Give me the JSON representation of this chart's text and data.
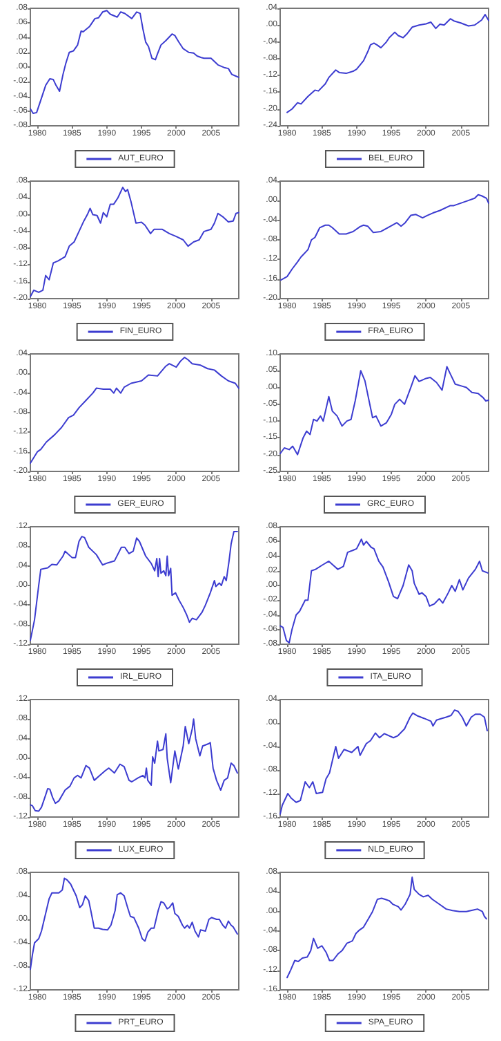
{
  "chart_data": [
    {
      "type": "line",
      "legend": "bottom",
      "xlim": [
        1979,
        2009
      ],
      "xticks": [
        1980,
        1985,
        1990,
        1995,
        2000,
        2005
      ],
      "ylim": [
        -0.08,
        0.08
      ],
      "yticks": [
        {
          "value": 0.08,
          "label": ".08"
        },
        {
          "value": 0.06,
          "label": ".06"
        },
        {
          "value": 0.04,
          "label": ".04"
        },
        {
          "value": 0.02,
          "label": ".02"
        },
        {
          "value": 0,
          "label": ".00"
        },
        {
          "value": -0.02,
          "label": "-.02"
        },
        {
          "value": -0.04,
          "label": "-.04"
        },
        {
          "value": -0.06,
          "label": "-.06"
        },
        {
          "value": -0.08,
          "label": "-.08"
        }
      ],
      "series": [
        {
          "name": "AUT_EURO",
          "color": "#3c3cd0",
          "x": [
            1979,
            1979.4,
            1979.9,
            1980.5,
            1981.2,
            1981.8,
            1982.3,
            1982.7,
            1983.2,
            1983.7,
            1984.1,
            1984.6,
            1985.2,
            1985.8,
            1986.3,
            1986.6,
            1987.5,
            1988.3,
            1988.8,
            1989.4,
            1990,
            1990.5,
            1991.5,
            1992,
            1992.6,
            1993.6,
            1994.3,
            1994.8,
            1995.2,
            1995.6,
            1996,
            1996.5,
            1997,
            1997.3,
            1997.8,
            1998.5,
            1999.4,
            1999.8,
            2000.3,
            2001,
            2001.8,
            2002.5,
            2003,
            2003.6,
            2004,
            2005,
            2006,
            2007,
            2007.5,
            2008,
            2008.5,
            2009
          ],
          "values": [
            -0.057,
            -0.063,
            -0.062,
            -0.045,
            -0.025,
            -0.016,
            -0.017,
            -0.025,
            -0.033,
            -0.01,
            0.005,
            0.02,
            0.022,
            0.03,
            0.049,
            0.048,
            0.055,
            0.066,
            0.067,
            0.075,
            0.077,
            0.072,
            0.068,
            0.075,
            0.073,
            0.066,
            0.075,
            0.073,
            0.052,
            0.034,
            0.028,
            0.012,
            0.01,
            0.018,
            0.03,
            0.036,
            0.045,
            0.043,
            0.035,
            0.025,
            0.02,
            0.019,
            0.015,
            0.013,
            0.012,
            0.012,
            0.003,
            -0.001,
            -0.002,
            -0.01,
            -0.012,
            -0.014
          ]
        }
      ]
    },
    {
      "type": "line",
      "legend": "bottom",
      "xlim": [
        1979,
        2009
      ],
      "xticks": [
        1980,
        1985,
        1990,
        1995,
        2000,
        2005
      ],
      "ylim": [
        -0.24,
        0.04
      ],
      "yticks": [
        {
          "value": 0.04,
          "label": ".04"
        },
        {
          "value": 0,
          "label": ".00"
        },
        {
          "value": -0.04,
          "label": "-.04"
        },
        {
          "value": -0.08,
          "label": "-.08"
        },
        {
          "value": -0.12,
          "label": "-.12"
        },
        {
          "value": -0.16,
          "label": "-.16"
        },
        {
          "value": -0.2,
          "label": "-.20"
        },
        {
          "value": -0.24,
          "label": "-.24"
        }
      ],
      "series": [
        {
          "name": "BEL_EURO",
          "color": "#3c3cd0",
          "x": [
            1980,
            1980.7,
            1981.5,
            1982,
            1983,
            1984,
            1984.5,
            1985.5,
            1986,
            1987,
            1987.5,
            1988.5,
            1989.5,
            1990,
            1991,
            1991.7,
            1992,
            1992.5,
            1993,
            1993.5,
            1994.3,
            1994.7,
            1995.5,
            1996,
            1996.7,
            1997.3,
            1998,
            1999,
            2000,
            2000.7,
            2001.4,
            2002,
            2002.6,
            2003.5,
            2004,
            2005,
            2006.1,
            2007,
            2008,
            2008.5,
            2009
          ],
          "values": [
            -0.208,
            -0.2,
            -0.185,
            -0.188,
            -0.17,
            -0.155,
            -0.157,
            -0.14,
            -0.125,
            -0.107,
            -0.113,
            -0.115,
            -0.11,
            -0.105,
            -0.085,
            -0.06,
            -0.047,
            -0.043,
            -0.048,
            -0.054,
            -0.04,
            -0.03,
            -0.017,
            -0.025,
            -0.03,
            -0.02,
            -0.005,
            0,
            0.003,
            0.007,
            -0.008,
            0.002,
            0,
            0.015,
            0.01,
            0.005,
            -0.002,
            0,
            0.012,
            0.025,
            0.011
          ]
        }
      ]
    },
    {
      "type": "line",
      "legend": "bottom",
      "xlim": [
        1979,
        2009
      ],
      "xticks": [
        1980,
        1985,
        1990,
        1995,
        2000,
        2005
      ],
      "ylim": [
        -0.2,
        0.08
      ],
      "yticks": [
        {
          "value": 0.08,
          "label": ".08"
        },
        {
          "value": 0.04,
          "label": ".04"
        },
        {
          "value": 0,
          "label": ".00"
        },
        {
          "value": -0.04,
          "label": "-.04"
        },
        {
          "value": -0.08,
          "label": "-.08"
        },
        {
          "value": -0.12,
          "label": "-.12"
        },
        {
          "value": -0.16,
          "label": "-.16"
        },
        {
          "value": -0.2,
          "label": "-.20"
        }
      ],
      "series": [
        {
          "name": "FIN_EURO",
          "color": "#3c3cd0",
          "x": [
            1979,
            1979.5,
            1980.2,
            1980.8,
            1981.2,
            1981.7,
            1982.3,
            1983,
            1984,
            1984.6,
            1985.3,
            1986,
            1986.7,
            1987.2,
            1987.6,
            1988,
            1988.6,
            1989.1,
            1989.5,
            1990,
            1990.5,
            1991,
            1991.6,
            1992.3,
            1992.7,
            1993,
            1993.5,
            1994.2,
            1995,
            1995.5,
            1996.3,
            1996.8,
            1998,
            1999,
            2000,
            2001,
            2001.7,
            2002.5,
            2003.3,
            2004,
            2005,
            2005.5,
            2006,
            2006.7,
            2007.5,
            2008.2,
            2008.6,
            2009
          ],
          "values": [
            -0.195,
            -0.18,
            -0.185,
            -0.18,
            -0.145,
            -0.155,
            -0.115,
            -0.11,
            -0.1,
            -0.075,
            -0.065,
            -0.04,
            -0.015,
            0,
            0.015,
            0,
            -0.002,
            -0.02,
            0.005,
            -0.005,
            0.025,
            0.025,
            0.04,
            0.065,
            0.055,
            0.06,
            0.03,
            -0.02,
            -0.018,
            -0.025,
            -0.045,
            -0.035,
            -0.035,
            -0.045,
            -0.052,
            -0.06,
            -0.075,
            -0.065,
            -0.06,
            -0.04,
            -0.035,
            -0.02,
            0.003,
            -0.005,
            -0.017,
            -0.015,
            0.003,
            0.005
          ]
        }
      ]
    },
    {
      "type": "line",
      "legend": "bottom",
      "xlim": [
        1979,
        2009
      ],
      "xticks": [
        1980,
        1985,
        1990,
        1995,
        2000,
        2005
      ],
      "ylim": [
        -0.2,
        0.04
      ],
      "yticks": [
        {
          "value": 0.04,
          "label": ".04"
        },
        {
          "value": 0,
          "label": ".00"
        },
        {
          "value": -0.04,
          "label": "-.04"
        },
        {
          "value": -0.08,
          "label": "-.08"
        },
        {
          "value": -0.12,
          "label": "-.12"
        },
        {
          "value": -0.16,
          "label": "-.16"
        },
        {
          "value": -0.2,
          "label": "-.20"
        }
      ],
      "series": [
        {
          "name": "FRA_EURO",
          "color": "#3c3cd0",
          "x": [
            1979.1,
            1980,
            1980.7,
            1981.5,
            1982,
            1983,
            1983.5,
            1984,
            1984.7,
            1985.5,
            1986,
            1986.5,
            1987.5,
            1988.5,
            1989.5,
            1990.5,
            1991,
            1991.6,
            1992.4,
            1993.5,
            1994.5,
            1995.8,
            1996.4,
            1997,
            1997.8,
            1998.5,
            1999.5,
            2000.2,
            2001,
            2002,
            2003.5,
            2004,
            2005,
            2006,
            2007,
            2007.5,
            2008,
            2008.7,
            2009
          ],
          "values": [
            -0.162,
            -0.155,
            -0.14,
            -0.125,
            -0.115,
            -0.1,
            -0.08,
            -0.075,
            -0.055,
            -0.05,
            -0.05,
            -0.055,
            -0.068,
            -0.068,
            -0.063,
            -0.053,
            -0.05,
            -0.052,
            -0.065,
            -0.063,
            -0.055,
            -0.045,
            -0.052,
            -0.045,
            -0.03,
            -0.028,
            -0.035,
            -0.03,
            -0.025,
            -0.02,
            -0.01,
            -0.01,
            -0.005,
            0,
            0.005,
            0.012,
            0.01,
            0.005,
            -0.005
          ]
        }
      ]
    },
    {
      "type": "line",
      "legend": "bottom",
      "xlim": [
        1979,
        2009
      ],
      "xticks": [
        1980,
        1985,
        1990,
        1995,
        2000,
        2005
      ],
      "ylim": [
        -0.2,
        0.04
      ],
      "yticks": [
        {
          "value": 0.04,
          "label": ".04"
        },
        {
          "value": 0,
          "label": ".00"
        },
        {
          "value": -0.04,
          "label": "-.04"
        },
        {
          "value": -0.08,
          "label": "-.08"
        },
        {
          "value": -0.12,
          "label": "-.12"
        },
        {
          "value": -0.16,
          "label": "-.16"
        },
        {
          "value": -0.2,
          "label": "-.20"
        }
      ],
      "series": [
        {
          "name": "GER_EURO",
          "color": "#3c3cd0",
          "x": [
            1979,
            1980,
            1980.5,
            1981.3,
            1982.5,
            1983.5,
            1984.5,
            1985.2,
            1986,
            1987,
            1988,
            1988.5,
            1989.5,
            1990.5,
            1991,
            1991.4,
            1992,
            1992.5,
            1993.5,
            1995,
            1996,
            1997.3,
            1998.5,
            1999,
            2000,
            2000.6,
            2001.2,
            2001.7,
            2002.3,
            2003.5,
            2004.5,
            2005.5,
            2006.5,
            2007.5,
            2008.5,
            2009
          ],
          "values": [
            -0.183,
            -0.16,
            -0.155,
            -0.14,
            -0.125,
            -0.11,
            -0.09,
            -0.085,
            -0.07,
            -0.055,
            -0.04,
            -0.03,
            -0.032,
            -0.032,
            -0.04,
            -0.03,
            -0.04,
            -0.028,
            -0.02,
            -0.015,
            -0.003,
            -0.005,
            0.015,
            0.02,
            0.013,
            0.025,
            0.033,
            0.028,
            0.02,
            0.017,
            0.01,
            0.007,
            -0.005,
            -0.015,
            -0.02,
            -0.03
          ]
        }
      ]
    },
    {
      "type": "line",
      "legend": "bottom",
      "xlim": [
        1979,
        2009
      ],
      "xticks": [
        1980,
        1985,
        1990,
        1995,
        2000,
        2005
      ],
      "ylim": [
        -0.25,
        0.1
      ],
      "yticks": [
        {
          "value": 0.1,
          "label": ".10"
        },
        {
          "value": 0.05,
          "label": ".05"
        },
        {
          "value": 0,
          "label": ".00"
        },
        {
          "value": -0.05,
          "label": "-.05"
        },
        {
          "value": -0.1,
          "label": "-.10"
        },
        {
          "value": -0.15,
          "label": "-.15"
        },
        {
          "value": -0.2,
          "label": "-.20"
        },
        {
          "value": -0.25,
          "label": "-.25"
        }
      ],
      "series": [
        {
          "name": "GRC_EURO",
          "color": "#3c3cd0",
          "x": [
            1979,
            1979.6,
            1980.3,
            1980.8,
            1981.5,
            1982.3,
            1982.8,
            1983.3,
            1983.8,
            1984.3,
            1984.8,
            1985.2,
            1986,
            1986.5,
            1987.2,
            1987.9,
            1988.6,
            1989.2,
            1989.8,
            1990.6,
            1991.2,
            1991.8,
            1992.3,
            1992.8,
            1993.5,
            1994.3,
            1995,
            1995.5,
            1996.2,
            1996.9,
            1997.8,
            1998.4,
            1999,
            2000,
            2000.6,
            2001.5,
            2002.3,
            2003,
            2003.5,
            2004.2,
            2005,
            2005.8,
            2006.6,
            2007.5,
            2008.2,
            2008.6,
            2009
          ],
          "values": [
            -0.197,
            -0.18,
            -0.185,
            -0.175,
            -0.2,
            -0.15,
            -0.13,
            -0.14,
            -0.095,
            -0.1,
            -0.085,
            -0.1,
            -0.027,
            -0.07,
            -0.085,
            -0.115,
            -0.1,
            -0.095,
            -0.04,
            0.05,
            0.02,
            -0.04,
            -0.09,
            -0.085,
            -0.115,
            -0.105,
            -0.08,
            -0.05,
            -0.035,
            -0.05,
            0,
            0.035,
            0.018,
            0.027,
            0.03,
            0.015,
            -0.008,
            0.062,
            0.04,
            0.01,
            0.005,
            0,
            -0.015,
            -0.018,
            -0.03,
            -0.04,
            -0.038
          ]
        }
      ]
    },
    {
      "type": "line",
      "legend": "bottom",
      "xlim": [
        1979,
        2009
      ],
      "xticks": [
        1980,
        1985,
        1990,
        1995,
        2000,
        2005
      ],
      "ylim": [
        -0.12,
        0.12
      ],
      "yticks": [
        {
          "value": 0.12,
          "label": ".12"
        },
        {
          "value": 0.08,
          "label": ".08"
        },
        {
          "value": 0.04,
          "label": ".04"
        },
        {
          "value": 0,
          "label": ".00"
        },
        {
          "value": -0.04,
          "label": "-.04"
        },
        {
          "value": -0.08,
          "label": "-.08"
        },
        {
          "value": -0.12,
          "label": "-.12"
        }
      ],
      "series": [
        {
          "name": "IRL_EURO",
          "color": "#3c3cd0",
          "x": [
            1979,
            1979.6,
            1980.2,
            1980.5,
            1981.5,
            1982.1,
            1982.8,
            1983.7,
            1984,
            1985,
            1985.5,
            1986,
            1986.4,
            1986.8,
            1987.4,
            1988.5,
            1989.4,
            1990.1,
            1991.1,
            1992.1,
            1992.6,
            1993.2,
            1993.8,
            1994.3,
            1994.7,
            1995.6,
            1996.4,
            1996.9,
            1997.2,
            1997.4,
            1997.6,
            1997.8,
            1998.2,
            1998.5,
            1998.7,
            1998.9,
            1999.2,
            1999.4,
            1999.9,
            2000.4,
            2001,
            2001.5,
            2001.9,
            2002.3,
            2002.9,
            2003.7,
            2004.2,
            2004.9,
            2005.5,
            2005.7,
            2006.2,
            2006.5,
            2006.9,
            2007.2,
            2007.6,
            2007.9,
            2008.3,
            2008.8
          ],
          "values": [
            -0.112,
            -0.07,
            0,
            0.033,
            0.036,
            0.043,
            0.042,
            0.06,
            0.07,
            0.057,
            0.057,
            0.09,
            0.1,
            0.098,
            0.078,
            0.063,
            0.042,
            0.046,
            0.05,
            0.078,
            0.078,
            0.065,
            0.07,
            0.097,
            0.09,
            0.06,
            0.045,
            0.03,
            0.055,
            0.018,
            0.055,
            0.025,
            0.03,
            0.02,
            0.06,
            0.02,
            0.035,
            -0.02,
            -0.015,
            -0.03,
            -0.045,
            -0.06,
            -0.075,
            -0.067,
            -0.07,
            -0.055,
            -0.04,
            -0.015,
            0.01,
            -0.002,
            0.005,
            0,
            0.018,
            0.01,
            0.05,
            0.085,
            0.11,
            0.11
          ]
        }
      ]
    },
    {
      "type": "line",
      "legend": "bottom",
      "xlim": [
        1979,
        2009
      ],
      "xticks": [
        1980,
        1985,
        1990,
        1995,
        2000,
        2005
      ],
      "ylim": [
        -0.08,
        0.08
      ],
      "yticks": [
        {
          "value": 0.08,
          "label": ".08"
        },
        {
          "value": 0.06,
          "label": ".06"
        },
        {
          "value": 0.04,
          "label": ".04"
        },
        {
          "value": 0.02,
          "label": ".02"
        },
        {
          "value": 0,
          "label": ".00"
        },
        {
          "value": -0.02,
          "label": "-.02"
        },
        {
          "value": -0.04,
          "label": "-.04"
        },
        {
          "value": -0.06,
          "label": "-.06"
        },
        {
          "value": -0.08,
          "label": "-.08"
        }
      ],
      "series": [
        {
          "name": "ITA_EURO",
          "color": "#3c3cd0",
          "x": [
            1979,
            1979.4,
            1979.9,
            1980.3,
            1980.7,
            1981.3,
            1981.8,
            1982.6,
            1983,
            1983.5,
            1984.1,
            1985.1,
            1986,
            1986.7,
            1987.3,
            1988.1,
            1988.7,
            1989.5,
            1990,
            1990.7,
            1991,
            1991.4,
            1992.1,
            1992.5,
            1993.2,
            1993.8,
            1994.6,
            1995.3,
            1995.9,
            1996.7,
            1997.5,
            1998,
            1998.3,
            1999,
            1999.4,
            2000,
            2000.5,
            2001.2,
            2001.9,
            2002.4,
            2003.2,
            2003.7,
            2004.2,
            2004.8,
            2005.3,
            2006.1,
            2007.1,
            2007.7,
            2008.1,
            2008.9
          ],
          "values": [
            -0.055,
            -0.057,
            -0.075,
            -0.078,
            -0.06,
            -0.04,
            -0.035,
            -0.02,
            -0.02,
            0.02,
            0.022,
            0.028,
            0.033,
            0.027,
            0.022,
            0.026,
            0.045,
            0.048,
            0.05,
            0.063,
            0.055,
            0.06,
            0.052,
            0.05,
            0.033,
            0.025,
            0.005,
            -0.015,
            -0.018,
            0,
            0.028,
            0.02,
            0.003,
            -0.012,
            -0.01,
            -0.015,
            -0.028,
            -0.025,
            -0.018,
            -0.024,
            -0.01,
            0,
            -0.008,
            0.008,
            -0.006,
            0.01,
            0.022,
            0.033,
            0.02,
            0.017
          ]
        }
      ]
    },
    {
      "type": "line",
      "legend": "bottom",
      "xlim": [
        1979,
        2009
      ],
      "xticks": [
        1980,
        1985,
        1990,
        1995,
        2000,
        2005
      ],
      "ylim": [
        -0.12,
        0.12
      ],
      "yticks": [
        {
          "value": 0.12,
          "label": ".12"
        },
        {
          "value": 0.08,
          "label": ".08"
        },
        {
          "value": 0.04,
          "label": ".04"
        },
        {
          "value": 0,
          "label": ".00"
        },
        {
          "value": -0.04,
          "label": "-.04"
        },
        {
          "value": -0.08,
          "label": "-.08"
        },
        {
          "value": -0.12,
          "label": "-.12"
        }
      ],
      "series": [
        {
          "name": "LUX_EURO",
          "color": "#3c3cd0",
          "x": [
            1979,
            1979.3,
            1979.7,
            1980.2,
            1980.6,
            1981.2,
            1981.5,
            1981.8,
            1982.2,
            1982.6,
            1983.1,
            1984,
            1984.7,
            1985.3,
            1985.8,
            1986.3,
            1987,
            1987.5,
            1988.2,
            1989,
            1989.8,
            1990.3,
            1991.1,
            1991.9,
            1992.5,
            1993.2,
            1993.6,
            1994.5,
            1995.2,
            1995.5,
            1995.7,
            1995.9,
            1996.4,
            1996.6,
            1996.9,
            1997.3,
            1997.5,
            1998.1,
            1998.5,
            1998.7,
            1999.2,
            1999.8,
            2000.3,
            2001,
            2001.3,
            2001.8,
            2002.3,
            2002.5,
            2002.8,
            2003.4,
            2003.8,
            2004.7,
            2004.9,
            2005.3,
            2005.8,
            2006.4,
            2006.9,
            2007.4,
            2007.9,
            2008.3,
            2008.8
          ],
          "values": [
            -0.095,
            -0.097,
            -0.107,
            -0.108,
            -0.1,
            -0.075,
            -0.062,
            -0.063,
            -0.08,
            -0.092,
            -0.087,
            -0.065,
            -0.057,
            -0.04,
            -0.035,
            -0.04,
            -0.015,
            -0.02,
            -0.045,
            -0.035,
            -0.025,
            -0.02,
            -0.03,
            -0.012,
            -0.017,
            -0.045,
            -0.048,
            -0.04,
            -0.035,
            -0.04,
            -0.02,
            -0.045,
            -0.055,
            0.003,
            -0.01,
            0.035,
            0.015,
            0.018,
            0.05,
            0,
            -0.05,
            0.015,
            -0.022,
            0.025,
            0.065,
            0.03,
            0.06,
            0.08,
            0.04,
            0.005,
            0.025,
            0.03,
            0.032,
            -0.02,
            -0.045,
            -0.065,
            -0.045,
            -0.04,
            -0.01,
            -0.015,
            -0.03
          ]
        }
      ]
    },
    {
      "type": "line",
      "legend": "bottom",
      "xlim": [
        1979,
        2009
      ],
      "xticks": [
        1980,
        1985,
        1990,
        1995,
        2000,
        2005
      ],
      "ylim": [
        -0.16,
        0.04
      ],
      "yticks": [
        {
          "value": 0.04,
          "label": ".04"
        },
        {
          "value": 0,
          "label": ".00"
        },
        {
          "value": -0.04,
          "label": "-.04"
        },
        {
          "value": -0.08,
          "label": "-.08"
        },
        {
          "value": -0.12,
          "label": "-.12"
        },
        {
          "value": -0.16,
          "label": "-.16"
        }
      ],
      "series": [
        {
          "name": "NLD_EURO",
          "color": "#3c3cd0",
          "x": [
            1979,
            1979.3,
            1979.9,
            1980.1,
            1980.6,
            1981.3,
            1981.9,
            1982.6,
            1983.2,
            1983.7,
            1984.2,
            1985.1,
            1985.6,
            1986.1,
            1987,
            1987.4,
            1988.2,
            1989.3,
            1990.2,
            1990.5,
            1991.4,
            1992,
            1992.7,
            1993.3,
            1994,
            1995.3,
            1995.9,
            1996.9,
            1997.7,
            1998.1,
            1998.8,
            1999.7,
            2000.7,
            2001,
            2001.5,
            2002.3,
            2002.9,
            2003.6,
            2004.1,
            2004.6,
            2005.2,
            2005.8,
            2006.5,
            2007.1,
            2007.8,
            2008.4,
            2008.8
          ],
          "values": [
            -0.155,
            -0.14,
            -0.125,
            -0.12,
            -0.128,
            -0.135,
            -0.132,
            -0.1,
            -0.11,
            -0.1,
            -0.12,
            -0.118,
            -0.095,
            -0.085,
            -0.04,
            -0.06,
            -0.045,
            -0.05,
            -0.04,
            -0.055,
            -0.035,
            -0.03,
            -0.017,
            -0.025,
            -0.018,
            -0.025,
            -0.022,
            -0.01,
            0.01,
            0.017,
            0.012,
            0.008,
            0.003,
            -0.005,
            0.005,
            0.008,
            0.01,
            0.013,
            0.022,
            0.02,
            0.01,
            -0.005,
            0.01,
            0.015,
            0.015,
            0.01,
            -0.013
          ]
        }
      ]
    },
    {
      "type": "line",
      "legend": "bottom",
      "xlim": [
        1979,
        2009
      ],
      "xticks": [
        1980,
        1985,
        1990,
        1995,
        2000,
        2005
      ],
      "ylim": [
        -0.12,
        0.08
      ],
      "yticks": [
        {
          "value": 0.08,
          "label": ".08"
        },
        {
          "value": 0.04,
          "label": ".04"
        },
        {
          "value": 0,
          "label": ".00"
        },
        {
          "value": -0.04,
          "label": "-.04"
        },
        {
          "value": -0.08,
          "label": "-.08"
        },
        {
          "value": -0.12,
          "label": "-.12"
        }
      ],
      "series": [
        {
          "name": "PRT_EURO",
          "color": "#3c3cd0",
          "x": [
            1979,
            1979.3,
            1979.6,
            1980.2,
            1980.6,
            1981.2,
            1981.7,
            1982.1,
            1982.6,
            1983.1,
            1983.6,
            1983.9,
            1984.3,
            1984.8,
            1985.6,
            1986.1,
            1986.5,
            1986.9,
            1987.4,
            1987.7,
            1988.2,
            1988.8,
            1989.4,
            1990.1,
            1990.6,
            1991.2,
            1991.5,
            1992,
            1992.5,
            1993,
            1993.4,
            1993.9,
            1994.6,
            1995.1,
            1995.5,
            1995.9,
            1996.4,
            1996.8,
            1997.4,
            1997.8,
            1998.2,
            1998.7,
            1999,
            1999.5,
            1999.8,
            2000.3,
            2000.9,
            2001.2,
            2001.6,
            2001.9,
            2002.3,
            2002.7,
            2003.2,
            2003.5,
            2004.2,
            2004.7,
            2005.1,
            2005.8,
            2006.2,
            2006.7,
            2007.1,
            2007.5,
            2007.9,
            2008.2,
            2008.8
          ],
          "values": [
            -0.085,
            -0.06,
            -0.04,
            -0.033,
            -0.02,
            0.01,
            0.035,
            0.045,
            0.045,
            0.045,
            0.05,
            0.07,
            0.067,
            0.06,
            0.04,
            0.02,
            0.025,
            0.04,
            0.032,
            0.015,
            -0.015,
            -0.015,
            -0.017,
            -0.018,
            -0.01,
            0.015,
            0.042,
            0.045,
            0.04,
            0.02,
            0.005,
            0.003,
            -0.015,
            -0.033,
            -0.037,
            -0.022,
            -0.015,
            -0.015,
            0.015,
            0.03,
            0.028,
            0.018,
            0.02,
            0.028,
            0.01,
            0.005,
            -0.01,
            -0.015,
            -0.01,
            -0.015,
            -0.005,
            -0.02,
            -0.03,
            -0.018,
            -0.02,
            0,
            0.003,
            0,
            0,
            -0.01,
            -0.015,
            -0.003,
            -0.01,
            -0.013,
            -0.025
          ]
        }
      ]
    },
    {
      "type": "line",
      "legend": "bottom",
      "xlim": [
        1979,
        2009
      ],
      "xticks": [
        1980,
        1985,
        1990,
        1995,
        2000,
        2005
      ],
      "ylim": [
        -0.16,
        0.08
      ],
      "yticks": [
        {
          "value": 0.08,
          "label": ".08"
        },
        {
          "value": 0.04,
          "label": ".04"
        },
        {
          "value": 0,
          "label": ".00"
        },
        {
          "value": -0.04,
          "label": "-.04"
        },
        {
          "value": -0.08,
          "label": "-.08"
        },
        {
          "value": -0.12,
          "label": "-.12"
        },
        {
          "value": -0.16,
          "label": "-.16"
        }
      ],
      "series": [
        {
          "name": "SPA_EURO",
          "color": "#3c3cd0",
          "x": [
            1980,
            1980.5,
            1981.1,
            1981.6,
            1982.2,
            1982.9,
            1983.4,
            1983.8,
            1984.4,
            1985,
            1985.6,
            1986.1,
            1986.6,
            1987.3,
            1987.9,
            1988.6,
            1989.4,
            1989.9,
            1990.4,
            1991,
            1991.7,
            1992.3,
            1993,
            1993.6,
            1994.1,
            1994.7,
            1995.2,
            1996,
            1996.4,
            1997,
            1997.7,
            1998,
            1998.3,
            1999,
            1999.6,
            2000.3,
            2000.9,
            2001.9,
            2002.9,
            2003.8,
            2004.8,
            2005.8,
            2006.8,
            2007.4,
            2008.1,
            2008.4,
            2008.7
          ],
          "values": [
            -0.135,
            -0.12,
            -0.1,
            -0.102,
            -0.095,
            -0.093,
            -0.08,
            -0.055,
            -0.075,
            -0.07,
            -0.083,
            -0.1,
            -0.1,
            -0.087,
            -0.08,
            -0.065,
            -0.06,
            -0.045,
            -0.038,
            -0.032,
            -0.015,
            0,
            0.025,
            0.027,
            0.025,
            0.022,
            0.015,
            0.01,
            0.003,
            0.015,
            0.035,
            0.07,
            0.045,
            0.035,
            0.03,
            0.033,
            0.025,
            0.015,
            0.005,
            0.002,
            0,
            0,
            0.003,
            0.005,
            0,
            -0.01,
            -0.015
          ]
        }
      ]
    }
  ]
}
